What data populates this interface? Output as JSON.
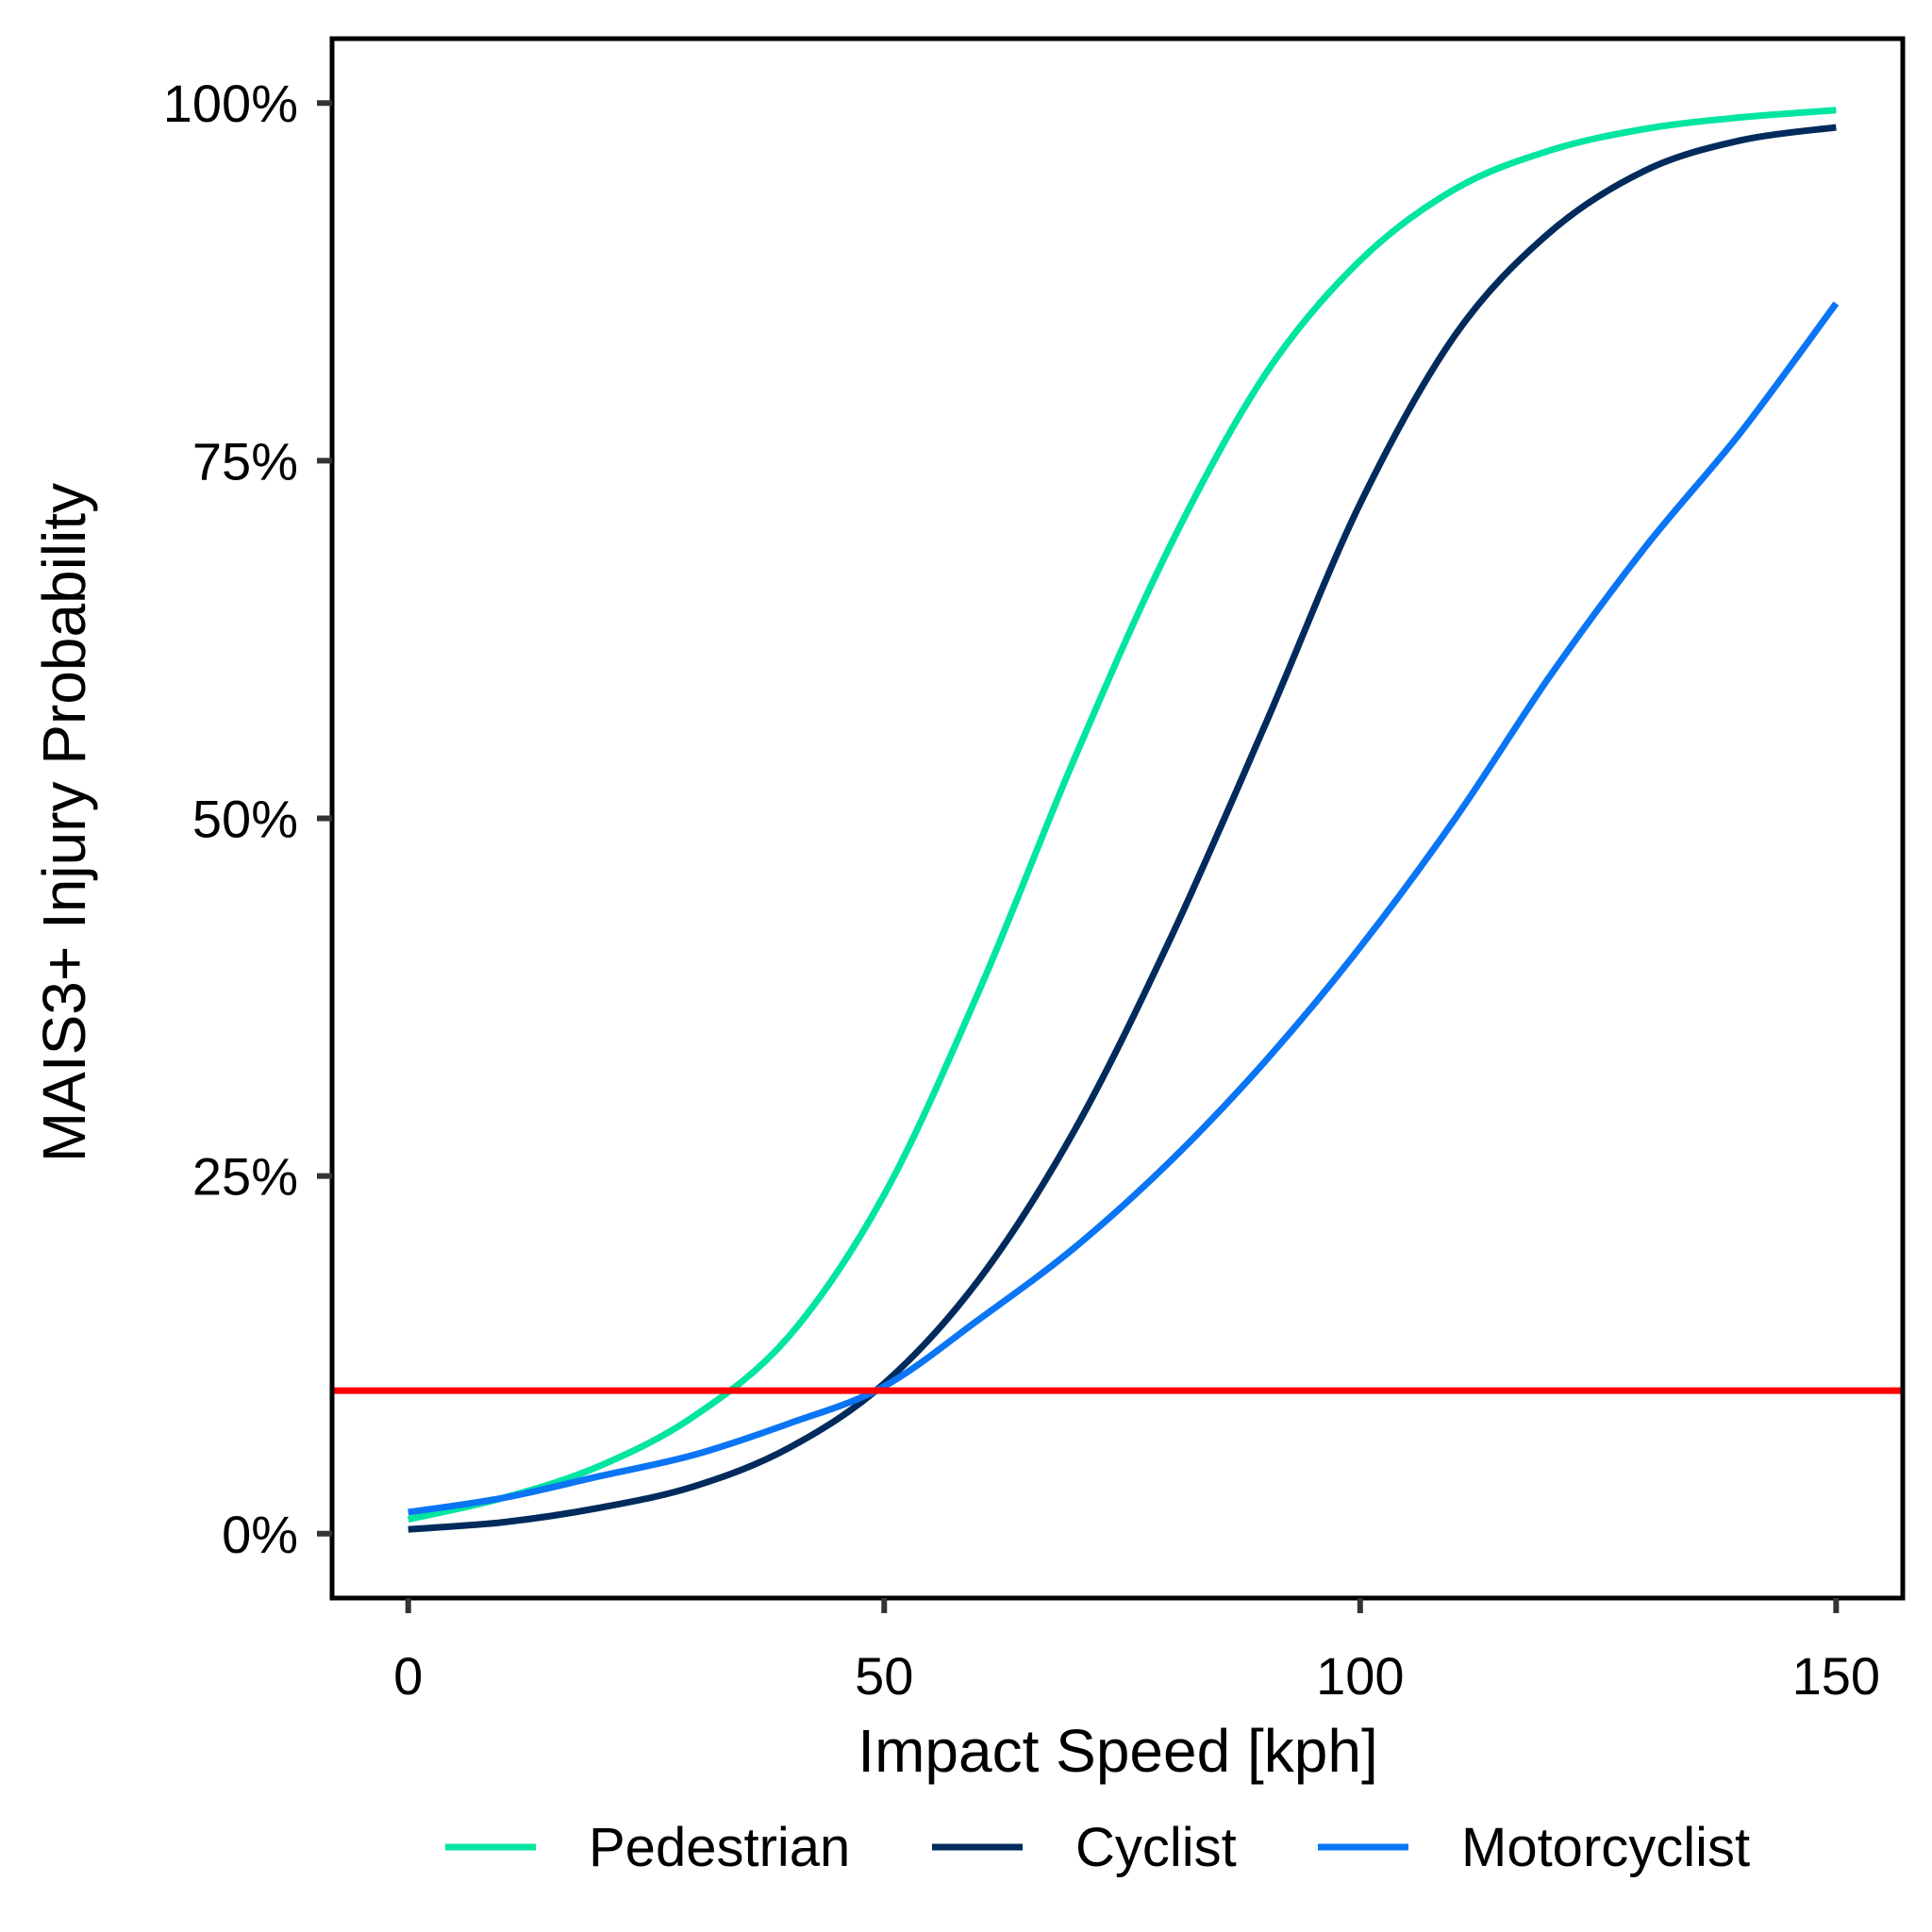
{
  "chart_data": {
    "type": "line",
    "title": "",
    "xlabel": "Impact Speed [kph]",
    "ylabel": "MAIS3+ Injury Probability",
    "xlim": [
      -8,
      157
    ],
    "ylim": [
      -0.045,
      1.045
    ],
    "x_ticks": [
      0,
      50,
      100,
      150
    ],
    "x_tick_labels": [
      "0",
      "50",
      "100",
      "150"
    ],
    "y_ticks": [
      0,
      0.25,
      0.5,
      0.75,
      1.0
    ],
    "y_tick_labels": [
      "0%",
      "25%",
      "50%",
      "75%",
      "100%"
    ],
    "grid": false,
    "legend_position": "bottom",
    "reference_line": {
      "y": 0.1,
      "color": "#ff0000"
    },
    "series": [
      {
        "name": "Pedestrian",
        "color": "#00e5a0",
        "x": [
          0,
          10,
          20,
          30,
          40,
          50,
          60,
          70,
          80,
          90,
          100,
          110,
          120,
          130,
          140,
          150
        ],
        "y": [
          0.01,
          0.025,
          0.047,
          0.082,
          0.138,
          0.237,
          0.38,
          0.542,
          0.69,
          0.81,
          0.89,
          0.94,
          0.967,
          0.982,
          0.99,
          0.995
        ]
      },
      {
        "name": "Cyclist",
        "color": "#002b5c",
        "x": [
          0,
          10,
          20,
          30,
          40,
          50,
          60,
          70,
          80,
          90,
          100,
          110,
          120,
          130,
          140,
          150
        ],
        "y": [
          0.003,
          0.008,
          0.018,
          0.033,
          0.06,
          0.105,
          0.178,
          0.282,
          0.415,
          0.565,
          0.72,
          0.838,
          0.91,
          0.953,
          0.974,
          0.983
        ]
      },
      {
        "name": "Motorcyclist",
        "color": "#0a75f5",
        "x": [
          0,
          10,
          20,
          30,
          40,
          50,
          60,
          70,
          80,
          90,
          100,
          110,
          120,
          130,
          140,
          150
        ],
        "y": [
          0.015,
          0.025,
          0.04,
          0.055,
          0.077,
          0.103,
          0.15,
          0.2,
          0.26,
          0.33,
          0.41,
          0.5,
          0.6,
          0.69,
          0.77,
          0.86
        ]
      }
    ]
  }
}
